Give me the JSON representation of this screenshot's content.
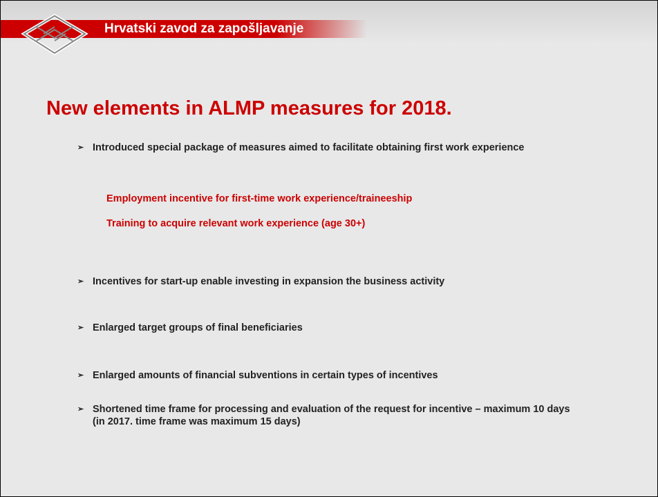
{
  "header": {
    "title": "Hrvatski zavod za zapošljavanje"
  },
  "slide": {
    "title": "New elements in ALMP measures for 2018.",
    "bullets": [
      {
        "text": "Introduced special package of measures aimed to facilitate obtaining first work experience",
        "subitems": [
          "Employment incentive for first-time work experience/traineeship",
          "Training to acquire relevant work experience (age 30+)"
        ]
      },
      {
        "text": "Incentives for start-up enable investing in expansion the business activity"
      },
      {
        "text": "Enlarged target groups of final beneficiaries"
      },
      {
        "text": "Enlarged amounts of financial subventions in certain types of incentives"
      },
      {
        "text": "Shortened time frame for processing and evaluation of the request for incentive – maximum 10 days (in 2017. time frame was maximum 15 days)"
      }
    ]
  }
}
